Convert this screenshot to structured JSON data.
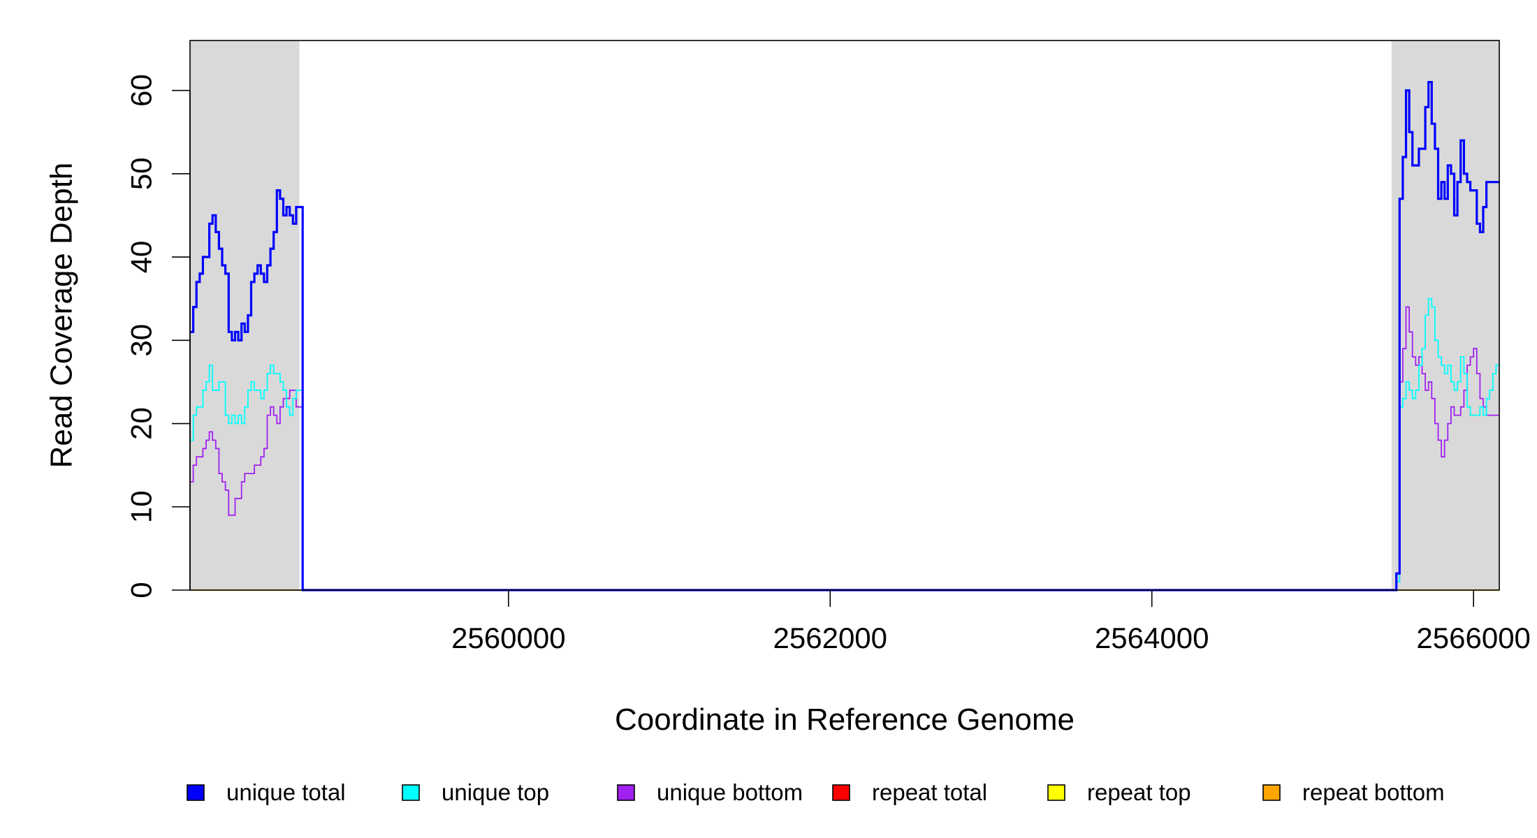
{
  "chart_data": {
    "type": "line",
    "title": "",
    "xlabel": "Coordinate in Reference Genome",
    "ylabel": "Read Coverage Depth",
    "xlim": [
      2558020,
      2566160
    ],
    "ylim": [
      0,
      66
    ],
    "x_ticks": [
      2560000,
      2562000,
      2564000,
      2566000
    ],
    "y_ticks": [
      0,
      10,
      20,
      30,
      40,
      50,
      60
    ],
    "grid": false,
    "step": true,
    "legend_position": "bottom",
    "shaded_regions": [
      {
        "x0": 2558020,
        "x1": 2558700,
        "color": "#d9d9d9"
      },
      {
        "x0": 2565490,
        "x1": 2566160,
        "color": "#d9d9d9"
      }
    ],
    "series": [
      {
        "name": "unique total",
        "color": "#0000ff",
        "x": [
          2558020,
          2558040,
          2558060,
          2558080,
          2558100,
          2558120,
          2558140,
          2558160,
          2558180,
          2558200,
          2558220,
          2558240,
          2558260,
          2558280,
          2558300,
          2558320,
          2558340,
          2558360,
          2558380,
          2558400,
          2558420,
          2558440,
          2558460,
          2558480,
          2558500,
          2558520,
          2558540,
          2558560,
          2558580,
          2558600,
          2558620,
          2558640,
          2558660,
          2558680,
          2558700,
          2558720,
          2565480,
          2565500,
          2565520,
          2565540,
          2565560,
          2565580,
          2565600,
          2565620,
          2565640,
          2565660,
          2565680,
          2565700,
          2565720,
          2565740,
          2565760,
          2565780,
          2565800,
          2565820,
          2565840,
          2565860,
          2565880,
          2565900,
          2565920,
          2565940,
          2565960,
          2565980,
          2566000,
          2566020,
          2566040,
          2566060,
          2566080,
          2566100,
          2566120,
          2566140,
          2566160
        ],
        "values": [
          31,
          34,
          37,
          38,
          40,
          40,
          44,
          45,
          43,
          41,
          39,
          38,
          31,
          30,
          31,
          30,
          32,
          31,
          33,
          37,
          38,
          39,
          38,
          37,
          39,
          41,
          43,
          48,
          47,
          45,
          46,
          45,
          44,
          46,
          46,
          0,
          0,
          0,
          2,
          47,
          52,
          60,
          55,
          51,
          51,
          53,
          53,
          58,
          61,
          56,
          53,
          47,
          49,
          47,
          51,
          50,
          45,
          49,
          54,
          50,
          49,
          48,
          48,
          44,
          43,
          46,
          49,
          49,
          49,
          49,
          49
        ]
      },
      {
        "name": "unique top",
        "color": "#00ffff",
        "x": [
          2558020,
          2558040,
          2558060,
          2558080,
          2558100,
          2558120,
          2558140,
          2558160,
          2558180,
          2558200,
          2558220,
          2558240,
          2558260,
          2558280,
          2558300,
          2558320,
          2558340,
          2558360,
          2558380,
          2558400,
          2558420,
          2558440,
          2558460,
          2558480,
          2558500,
          2558520,
          2558540,
          2558560,
          2558580,
          2558600,
          2558620,
          2558640,
          2558660,
          2558680,
          2558700,
          2558720,
          2565480,
          2565500,
          2565520,
          2565540,
          2565560,
          2565580,
          2565600,
          2565620,
          2565640,
          2565660,
          2565680,
          2565700,
          2565720,
          2565740,
          2565760,
          2565780,
          2565800,
          2565820,
          2565840,
          2565860,
          2565880,
          2565900,
          2565920,
          2565940,
          2565960,
          2565980,
          2566000,
          2566020,
          2566040,
          2566060,
          2566080,
          2566100,
          2566120,
          2566140,
          2566160
        ],
        "values": [
          18,
          21,
          22,
          22,
          24,
          25,
          27,
          24,
          24,
          25,
          25,
          21,
          20,
          21,
          20,
          21,
          20,
          22,
          24,
          25,
          24,
          24,
          23,
          24,
          26,
          27,
          26,
          26,
          25,
          24,
          22,
          21,
          23,
          24,
          24,
          0,
          0,
          0,
          1,
          22,
          23,
          25,
          24,
          23,
          24,
          27,
          29,
          33,
          35,
          34,
          30,
          28,
          27,
          26,
          27,
          25,
          24,
          25,
          28,
          26,
          22,
          21,
          21,
          21,
          22,
          21,
          23,
          24,
          26,
          27,
          27
        ]
      },
      {
        "name": "unique bottom",
        "color": "#a020f0",
        "x": [
          2558020,
          2558040,
          2558060,
          2558080,
          2558100,
          2558120,
          2558140,
          2558160,
          2558180,
          2558200,
          2558220,
          2558240,
          2558260,
          2558280,
          2558300,
          2558320,
          2558340,
          2558360,
          2558380,
          2558400,
          2558420,
          2558440,
          2558460,
          2558480,
          2558500,
          2558520,
          2558540,
          2558560,
          2558580,
          2558600,
          2558620,
          2558640,
          2558660,
          2558680,
          2558700,
          2558720,
          2565480,
          2565500,
          2565520,
          2565540,
          2565560,
          2565580,
          2565600,
          2565620,
          2565640,
          2565660,
          2565680,
          2565700,
          2565720,
          2565740,
          2565760,
          2565780,
          2565800,
          2565820,
          2565840,
          2565860,
          2565880,
          2565900,
          2565920,
          2565940,
          2565960,
          2565980,
          2566000,
          2566020,
          2566040,
          2566060,
          2566080,
          2566100,
          2566120,
          2566140,
          2566160
        ],
        "values": [
          13,
          15,
          16,
          16,
          17,
          18,
          19,
          18,
          17,
          14,
          13,
          12,
          9,
          9,
          11,
          11,
          13,
          14,
          14,
          14,
          15,
          15,
          16,
          17,
          21,
          22,
          21,
          20,
          22,
          23,
          23,
          24,
          24,
          22,
          22,
          0,
          0,
          0,
          1,
          25,
          29,
          34,
          31,
          28,
          27,
          28,
          26,
          24,
          25,
          23,
          20,
          18,
          16,
          18,
          20,
          22,
          21,
          21,
          22,
          24,
          27,
          28,
          29,
          26,
          23,
          22,
          21,
          21,
          21,
          21,
          21
        ]
      },
      {
        "name": "repeat total",
        "color": "#ff0000",
        "x": [
          2558020,
          2566160
        ],
        "values": [
          0,
          0
        ]
      },
      {
        "name": "repeat top",
        "color": "#ffff00",
        "x": [
          2558020,
          2566160
        ],
        "values": [
          0,
          0
        ]
      },
      {
        "name": "repeat bottom",
        "color": "#ffa500",
        "x": [
          2558020,
          2566160
        ],
        "values": [
          0,
          0
        ]
      }
    ]
  }
}
